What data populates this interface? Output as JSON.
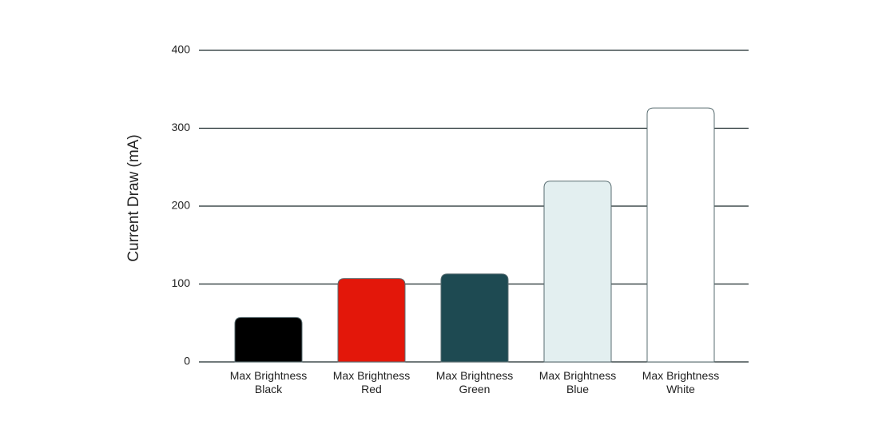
{
  "chart_data": {
    "type": "bar",
    "y_label": "Current Draw (mA)",
    "categories": [
      "Max Brightness Black",
      "Max Brightness Red",
      "Max Brightness Green",
      "Max Brightness Blue",
      "Max Brightness White"
    ],
    "values": [
      57,
      107,
      113,
      232,
      326
    ],
    "colors": [
      "#000000",
      "#e3170a",
      "#1e4a52",
      "#e3eff0",
      "#ffffff"
    ],
    "ylim": [
      0,
      400
    ],
    "yticks": [
      0,
      100,
      200,
      300,
      400
    ],
    "grid": true
  }
}
